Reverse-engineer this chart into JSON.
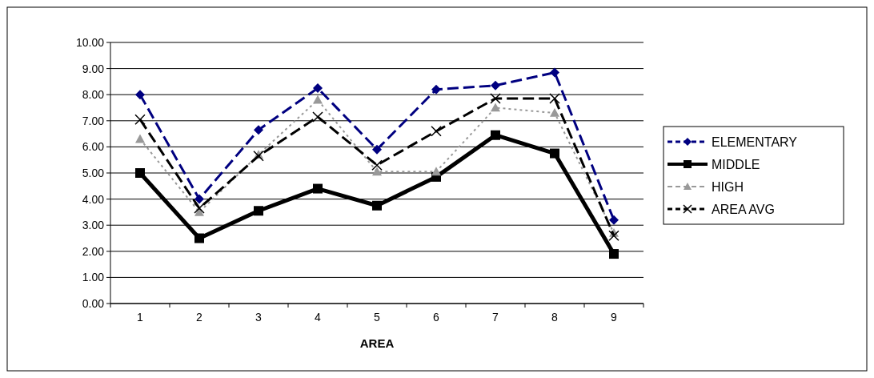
{
  "chart_data": {
    "type": "line",
    "xlabel": "AREA",
    "categories": [
      "1",
      "2",
      "3",
      "4",
      "5",
      "6",
      "7",
      "8",
      "9"
    ],
    "ylim": [
      0,
      10
    ],
    "yticks": [
      {
        "value": 0,
        "label": "0.00"
      },
      {
        "value": 1,
        "label": "1.00"
      },
      {
        "value": 2,
        "label": "2.00"
      },
      {
        "value": 3,
        "label": "3.00"
      },
      {
        "value": 4,
        "label": "4.00"
      },
      {
        "value": 5,
        "label": "5.00"
      },
      {
        "value": 6,
        "label": "6.00"
      },
      {
        "value": 7,
        "label": "7.00"
      },
      {
        "value": 8,
        "label": "8.00"
      },
      {
        "value": 9,
        "label": "9.00"
      },
      {
        "value": 10,
        "label": "10.00"
      }
    ],
    "grid": "y",
    "legend": "right",
    "series": [
      {
        "name": "ELEMENTARY",
        "color": "#000080",
        "marker": "diamond",
        "line_style": "dashed",
        "values": [
          8.0,
          4.0,
          6.65,
          8.25,
          5.9,
          8.2,
          8.35,
          8.85,
          3.2
        ]
      },
      {
        "name": "MIDDLE",
        "color": "#000000",
        "marker": "square",
        "line_style": "solid",
        "values": [
          5.0,
          2.5,
          3.55,
          4.4,
          3.75,
          4.85,
          6.45,
          5.75,
          1.9
        ]
      },
      {
        "name": "HIGH",
        "color": "#999999",
        "marker": "triangle",
        "line_style": "dotted",
        "values": [
          6.3,
          3.5,
          5.7,
          7.8,
          5.05,
          5.05,
          7.5,
          7.3,
          2.7
        ]
      },
      {
        "name": "AREA AVG",
        "color": "#000000",
        "marker": "cross",
        "line_style": "dashed",
        "values": [
          7.05,
          3.65,
          5.65,
          7.15,
          5.3,
          6.6,
          7.85,
          7.85,
          2.6
        ]
      }
    ]
  }
}
